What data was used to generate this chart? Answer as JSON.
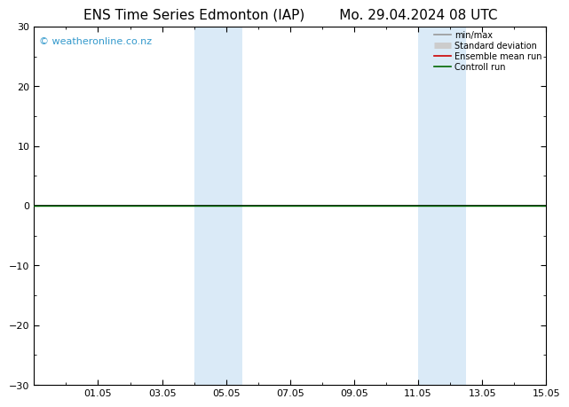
{
  "title_left": "ENS Time Series Edmonton (IAP)",
  "title_right": "Mo. 29.04.2024 08 UTC",
  "ylim": [
    -30,
    30
  ],
  "yticks": [
    -30,
    -20,
    -10,
    0,
    10,
    20,
    30
  ],
  "xtick_labels": [
    "01.05",
    "03.05",
    "05.05",
    "07.05",
    "09.05",
    "11.05",
    "13.05",
    "15.05"
  ],
  "shaded_bands": [
    {
      "x_start": 5.0,
      "x_end": 6.5
    },
    {
      "x_start": 12.0,
      "x_end": 13.5
    }
  ],
  "shade_color": "#daeaf7",
  "watermark": "© weatheronline.co.nz",
  "watermark_color": "#3399cc",
  "legend_items": [
    {
      "label": "min/max",
      "color": "#999999",
      "lw": 1.2,
      "style": "-"
    },
    {
      "label": "Standard deviation",
      "color": "#cccccc",
      "lw": 5,
      "style": "-"
    },
    {
      "label": "Ensemble mean run",
      "color": "#cc0000",
      "lw": 1.2,
      "style": "-"
    },
    {
      "label": "Controll run",
      "color": "#006600",
      "lw": 1.2,
      "style": "-"
    }
  ],
  "zero_line_color": "#000000",
  "control_run_color": "#006600",
  "background_color": "#ffffff",
  "title_fontsize": 11,
  "tick_fontsize": 8,
  "watermark_fontsize": 8,
  "legend_fontsize": 7,
  "xlim": [
    0,
    16
  ],
  "xtick_positions": [
    2,
    4,
    6,
    8,
    10,
    12,
    14,
    16
  ]
}
